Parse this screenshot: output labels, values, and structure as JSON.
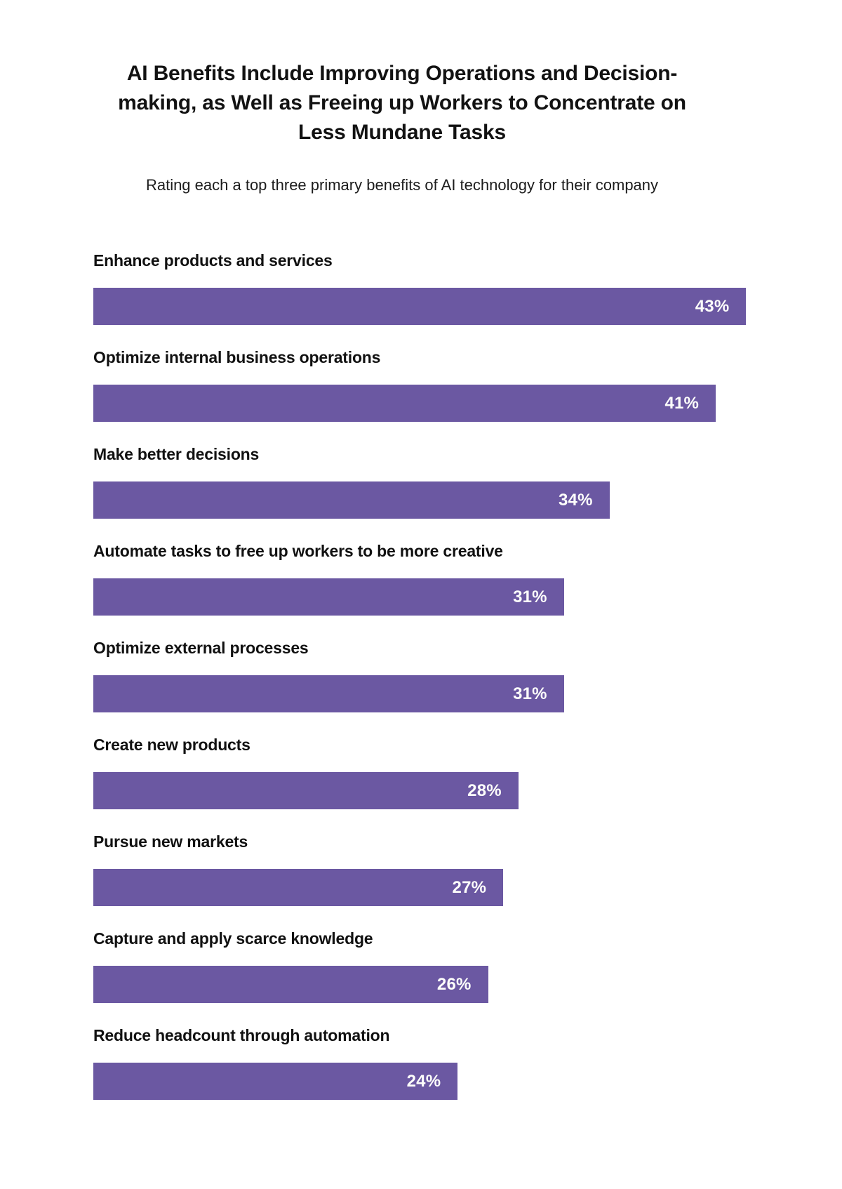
{
  "page": {
    "background_color": "#ffffff"
  },
  "header": {
    "title": "AI Benefits Include Improving Operations and Decision-making, as Well as Freeing up Workers to Concentrate on Less Mundane Tasks",
    "subtitle": "Rating each a top three primary benefits of AI technology for their company"
  },
  "chart_data": {
    "type": "bar",
    "orientation": "horizontal",
    "title": "AI Benefits Include Improving Operations and Decision-making, as Well as Freeing up Workers to Concentrate on Less Mundane Tasks",
    "subtitle": "Rating each a top three primary benefits of AI technology for their company",
    "categories": [
      "Enhance products and services",
      "Optimize internal business operations",
      "Make better decisions",
      "Automate tasks to free up workers to be more creative",
      "Optimize external processes",
      "Create new products",
      "Pursue new markets",
      "Capture and apply scarce knowledge",
      "Reduce headcount through automation"
    ],
    "values": [
      43,
      41,
      34,
      31,
      31,
      28,
      27,
      26,
      24
    ],
    "display_values": [
      "43%",
      "41%",
      "34%",
      "31%",
      "31%",
      "28%",
      "27%",
      "26%",
      "24%"
    ],
    "value_suffix": "%",
    "scale_max": 44,
    "bar_color": "#6B58A2",
    "value_label_color": "#fdfdfb",
    "category_label_color": "#111111",
    "grid": false,
    "legend": false,
    "value_labels_position": "inside-right"
  }
}
